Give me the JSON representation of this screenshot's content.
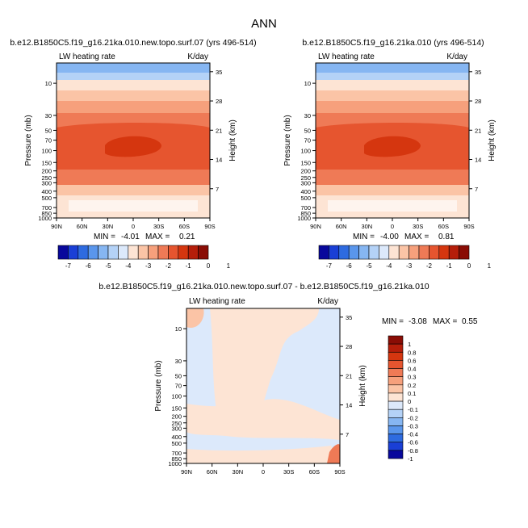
{
  "page_title": "ANN",
  "colors": {
    "sequential_scale": [
      "#08089c",
      "#1a3fd6",
      "#2e6be0",
      "#5a96ec",
      "#86b6f2",
      "#b4d2f7",
      "#dce9fb",
      "#fde4d4",
      "#fbc4a6",
      "#f6a07c",
      "#ef7a56",
      "#e6552f",
      "#d5360f",
      "#b51e0a",
      "#8a0d05"
    ],
    "diff_scale": [
      "#08089c",
      "#1a3fd6",
      "#2e6be0",
      "#5a96ec",
      "#86b6f2",
      "#b4d2f7",
      "#dce9fb",
      "#fde4d4",
      "#fbc4a6",
      "#f6a07c",
      "#ef7a56",
      "#e6552f",
      "#d5360f",
      "#b51e0a",
      "#8a0d05"
    ]
  },
  "chart_data": [
    {
      "type": "heatmap",
      "title": "b.e12.B1850C5.f19_g16.21ka.010.new.topo.surf.07 (yrs 496-514)",
      "field_label": "LW heating rate",
      "units": "K/day",
      "xlabel": "",
      "ylabel": "Pressure (mb)",
      "ylabel_right": "Height (km)",
      "x_ticks": [
        "90N",
        "60N",
        "30N",
        "0",
        "30S",
        "60S",
        "90S"
      ],
      "y_ticks": [
        "10",
        "30",
        "50",
        "70",
        "100",
        "150",
        "200",
        "250",
        "300",
        "400",
        "500",
        "700",
        "850",
        "1000"
      ],
      "y_ticks_right": [
        "35",
        "28",
        "21",
        "14",
        "7"
      ],
      "stats": {
        "min_label": "MIN =",
        "min": "-4.01",
        "max_label": "MAX =",
        "max": "0.21"
      },
      "colorbar_labels": [
        "-7",
        "-6",
        "-5",
        "-4",
        "-3",
        "-2",
        "-1",
        "0",
        "1"
      ]
    },
    {
      "type": "heatmap",
      "title": "b.e12.B1850C5.f19_g16.21ka.010 (yrs 496-514)",
      "field_label": "LW heating rate",
      "units": "K/day",
      "xlabel": "",
      "ylabel": "Pressure (mb)",
      "ylabel_right": "Height (km)",
      "x_ticks": [
        "90N",
        "60N",
        "30N",
        "0",
        "30S",
        "60S",
        "90S"
      ],
      "y_ticks": [
        "10",
        "30",
        "50",
        "70",
        "100",
        "150",
        "200",
        "250",
        "300",
        "400",
        "500",
        "700",
        "850",
        "1000"
      ],
      "y_ticks_right": [
        "35",
        "28",
        "21",
        "14",
        "7"
      ],
      "stats": {
        "min_label": "MIN =",
        "min": "-4.00",
        "max_label": "MAX =",
        "max": "0.81"
      },
      "colorbar_labels": [
        "-7",
        "-6",
        "-5",
        "-4",
        "-3",
        "-2",
        "-1",
        "0",
        "1"
      ]
    },
    {
      "type": "heatmap",
      "title": "b.e12.B1850C5.f19_g16.21ka.010.new.topo.surf.07 - b.e12.B1850C5.f19_g16.21ka.010",
      "field_label": "LW heating rate",
      "units": "K/day",
      "xlabel": "",
      "ylabel": "Pressure (mb)",
      "ylabel_right": "Height (km)",
      "x_ticks": [
        "90N",
        "60N",
        "30N",
        "0",
        "30S",
        "60S",
        "90S"
      ],
      "y_ticks": [
        "10",
        "30",
        "50",
        "70",
        "100",
        "150",
        "200",
        "250",
        "300",
        "400",
        "500",
        "700",
        "850",
        "1000"
      ],
      "y_ticks_right": [
        "35",
        "28",
        "21",
        "14",
        "7"
      ],
      "stats": {
        "min_label": "MIN =",
        "min": "-3.08",
        "max_label": "MAX =",
        "max": "0.55"
      },
      "colorbar_labels": [
        "1",
        "0.8",
        "0.6",
        "0.4",
        "0.3",
        "0.2",
        "0.1",
        "0",
        "-0.1",
        "-0.2",
        "-0.3",
        "-0.4",
        "-0.6",
        "-0.8",
        "-1"
      ]
    }
  ]
}
